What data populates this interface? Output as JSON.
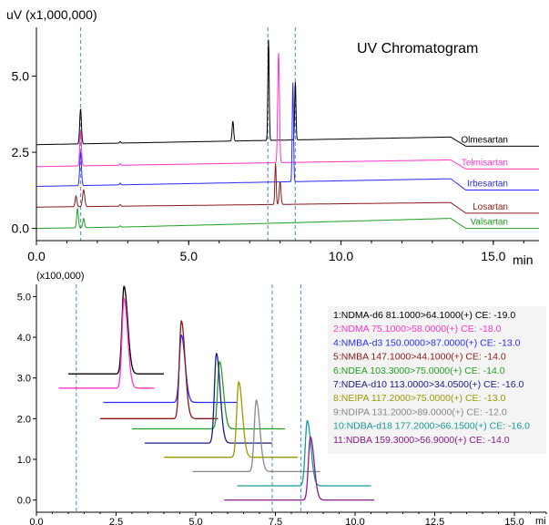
{
  "chart_data": [
    {
      "type": "line",
      "title": "UV Chromatogram",
      "ylabel": "uV (x1,000,000)",
      "xlabel": "min",
      "xlim": [
        0,
        16.5
      ],
      "ylim": [
        -0.4,
        6.6
      ],
      "x_ticks": [
        "0.0",
        "5.0",
        "10.0",
        "15.0"
      ],
      "x_tick_values": [
        0,
        5,
        10,
        15
      ],
      "y_ticks": [
        "0.0",
        "2.5",
        "5.0"
      ],
      "y_tick_values": [
        0,
        2.5,
        5.0
      ],
      "reference_lines_x": [
        1.45,
        7.6,
        8.5
      ],
      "series": [
        {
          "name": "Olmesartan",
          "color": "#000000",
          "baseline": 2.75,
          "drift": [
            [
              0,
              0
            ],
            [
              13.6,
              0.25
            ],
            [
              14.1,
              -0.05
            ],
            [
              16.5,
              -0.05
            ]
          ],
          "peaks": [
            [
              1.45,
              1.15,
              0.04
            ],
            [
              2.75,
              0.05,
              0.03
            ],
            [
              6.45,
              0.65,
              0.035
            ],
            [
              7.62,
              3.3,
              0.03
            ],
            [
              8.5,
              1.9,
              0.03
            ]
          ]
        },
        {
          "name": "Telmisartan",
          "color": "#ff33cc",
          "baseline": 2.03,
          "drift": [
            [
              0,
              0
            ],
            [
              13.6,
              0.22
            ],
            [
              14.1,
              -0.08
            ],
            [
              16.5,
              -0.08
            ]
          ],
          "peaks": [
            [
              1.45,
              1.15,
              0.04
            ],
            [
              2.75,
              0.05,
              0.03
            ],
            [
              7.95,
              3.6,
              0.04
            ]
          ]
        },
        {
          "name": "Irbesartan",
          "color": "#2b2bff",
          "baseline": 1.38,
          "drift": [
            [
              0,
              0
            ],
            [
              13.6,
              0.25
            ],
            [
              14.1,
              -0.12
            ],
            [
              16.5,
              -0.12
            ]
          ],
          "peaks": [
            [
              1.45,
              1.1,
              0.04
            ],
            [
              2.75,
              0.06,
              0.03
            ],
            [
              8.42,
              3.25,
              0.03
            ]
          ]
        },
        {
          "name": "Losartan",
          "color": "#8b1a1a",
          "baseline": 0.7,
          "drift": [
            [
              0,
              0
            ],
            [
              13.6,
              0.15
            ],
            [
              14.1,
              -0.2
            ],
            [
              16.5,
              -0.2
            ]
          ],
          "peaks": [
            [
              1.3,
              0.35,
              0.04
            ],
            [
              1.55,
              0.55,
              0.05
            ],
            [
              2.75,
              0.05,
              0.03
            ],
            [
              7.85,
              1.35,
              0.03
            ],
            [
              8.0,
              0.75,
              0.04
            ]
          ]
        },
        {
          "name": "Valsartan",
          "color": "#22a022",
          "baseline": 0.0,
          "drift": [
            [
              0,
              0
            ],
            [
              3,
              0.05
            ],
            [
              7,
              0.15
            ],
            [
              13.6,
              0.33
            ],
            [
              14.1,
              0.0
            ],
            [
              16.5,
              0.0
            ]
          ],
          "peaks": [
            [
              1.35,
              0.62,
              0.04
            ],
            [
              1.55,
              0.3,
              0.04
            ],
            [
              2.75,
              0.04,
              0.03
            ]
          ]
        }
      ]
    },
    {
      "type": "line",
      "ylabel": "(x100,000)",
      "xlabel": "mi",
      "xlim": [
        0,
        16
      ],
      "ylim": [
        -0.3,
        5.3
      ],
      "x_ticks": [
        "0.0",
        "2.5",
        "5.0",
        "7.5",
        "10.0",
        "12.5",
        "15.0"
      ],
      "x_tick_values": [
        0,
        2.5,
        5,
        7.5,
        10,
        12.5,
        15
      ],
      "y_ticks": [
        "0.0",
        "1.0",
        "2.0",
        "3.0",
        "4.0",
        "5.0"
      ],
      "y_tick_values": [
        0,
        1,
        2,
        3,
        4,
        5
      ],
      "reference_lines_x": [
        1.25,
        7.4,
        8.3
      ],
      "series": [
        {
          "name": "1:NDMA-d6 81.1000>64.1000(+) CE: -19.0",
          "color": "#000000",
          "x0": 1.0,
          "x1": 4.0,
          "baseline": 3.1,
          "peak_x": 2.75,
          "peak_h": 2.15
        },
        {
          "name": "2:NDMA 75.1000>58.0000(+) CE: -18.0",
          "color": "#ff33cc",
          "x0": 0.7,
          "x1": 3.7,
          "baseline": 2.75,
          "peak_x": 2.75,
          "peak_h": 2.2
        },
        {
          "name": "4:NMBA-d3 150.0000>87.0000(+) CE: -13.0",
          "color": "#2b2bff",
          "x0": 2.1,
          "x1": 6.3,
          "baseline": 2.4,
          "peak_x": 4.55,
          "peak_h": 1.65
        },
        {
          "name": "5:NMBA 147.1000>44.1000(+) CE: -14.0",
          "color": "#8b1a1a",
          "x0": 2.0,
          "x1": 5.7,
          "baseline": 2.0,
          "peak_x": 4.55,
          "peak_h": 2.4
        },
        {
          "name": "6:NDEA 103.3000>75.0000(+) CE: -14.0",
          "color": "#22a022",
          "x0": 3.0,
          "x1": 7.8,
          "baseline": 1.75,
          "peak_x": 5.75,
          "peak_h": 1.65
        },
        {
          "name": "7:NDEA-d10 113.0000>34.0500(+) CE: -16.0",
          "color": "#1a1a8b",
          "x0": 3.4,
          "x1": 7.4,
          "baseline": 1.4,
          "peak_x": 5.65,
          "peak_h": 2.2
        },
        {
          "name": "8:NEIPA 117.2000>75.0000(+) CE: -13.0",
          "color": "#9a9a00",
          "x0": 4.0,
          "x1": 8.2,
          "baseline": 1.05,
          "peak_x": 6.35,
          "peak_h": 1.85
        },
        {
          "name": "9:NDIPA 131.2000>89.0000(+) CE: -12.0",
          "color": "#888888",
          "x0": 4.9,
          "x1": 8.9,
          "baseline": 0.7,
          "peak_x": 6.9,
          "peak_h": 1.75
        },
        {
          "name": "10:NDBA-d18 177.2000>66.1500(+) CE: -16.0",
          "color": "#1a9a9a",
          "x0": 6.3,
          "x1": 10.5,
          "baseline": 0.35,
          "peak_x": 8.5,
          "peak_h": 1.6
        },
        {
          "name": "11:NDBA 159.3000>56.9000(+) CE: -14.0",
          "color": "#8b1a8b",
          "x0": 5.9,
          "x1": 10.6,
          "baseline": 0.0,
          "peak_x": 8.6,
          "peak_h": 1.55
        }
      ]
    }
  ]
}
